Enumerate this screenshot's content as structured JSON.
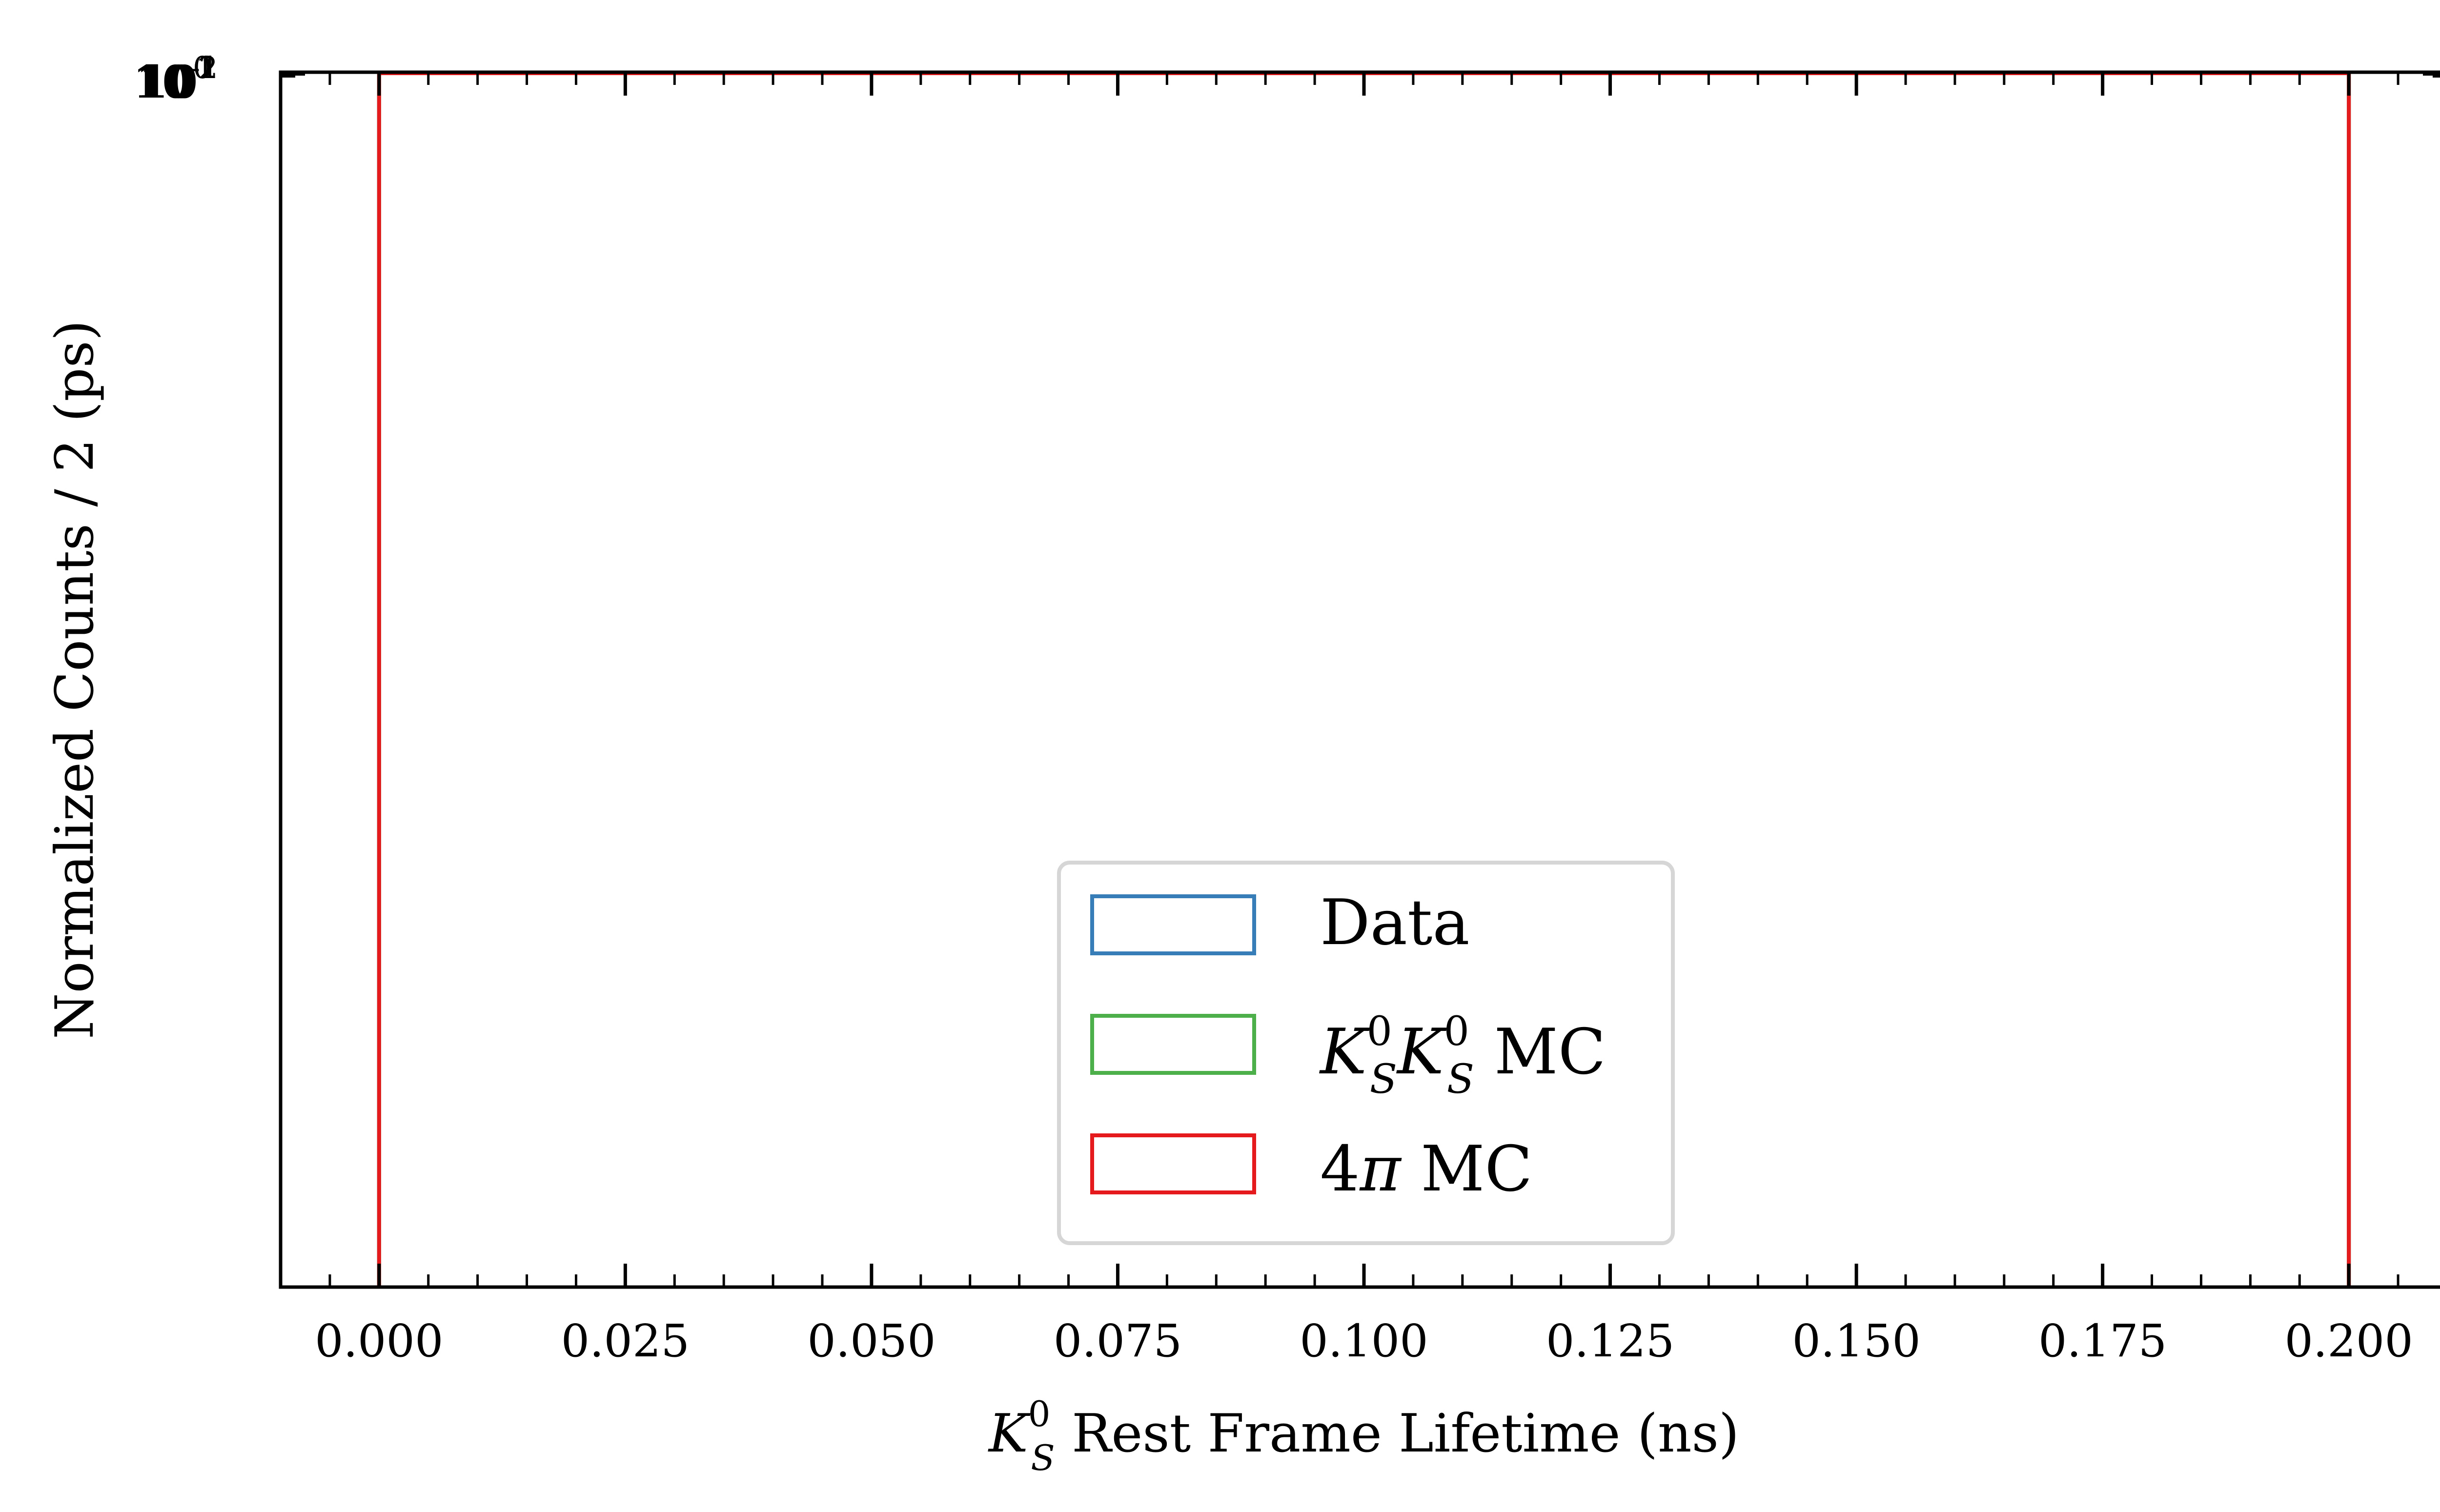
{
  "chart_data": {
    "type": "histogram",
    "title": "",
    "xlabel": {
      "symbol": "K",
      "superscript": "0",
      "subscript": "S",
      "text": " Rest Frame Lifetime (ns)"
    },
    "ylabel": "Normalized Counts / 2 (ps)",
    "xlim": [
      -0.01,
      0.21
    ],
    "y_scale": "log",
    "x_tick_labels": [
      "0.000",
      "0.025",
      "0.050",
      "0.075",
      "0.100",
      "0.125",
      "0.150",
      "0.175",
      "0.200"
    ],
    "x_ticks": [
      0.0,
      0.025,
      0.05,
      0.075,
      0.1,
      0.125,
      0.15,
      0.175,
      0.2
    ],
    "y_tick_labels_overlapping": [
      "10",
      "10",
      "10",
      "10"
    ],
    "y_tick_superscripts": [
      "0",
      "1",
      "2",
      "-1"
    ],
    "series": [
      {
        "name": "Data",
        "color": "#377eb8",
        "edges": [
          0.0,
          0.2
        ],
        "fill": false
      },
      {
        "name": "K_S^0 K_S^0 MC",
        "color": "#4daf4a",
        "edges": [
          0.0,
          0.2
        ],
        "fill": false
      },
      {
        "name": "4π MC",
        "color": "#e41a1c",
        "edges": [
          0.0,
          0.2
        ],
        "fill": false
      }
    ],
    "legend": {
      "placement": "lower-center",
      "entries": [
        {
          "color": "#377eb8",
          "label": "Data"
        },
        {
          "color": "#4daf4a",
          "label_parts": [
            "K",
            "0",
            "S",
            "K",
            "0",
            "S",
            " MC"
          ]
        },
        {
          "color": "#e41a1c",
          "label_parts": [
            "4",
            "π",
            " MC"
          ]
        }
      ]
    },
    "grid": false
  }
}
